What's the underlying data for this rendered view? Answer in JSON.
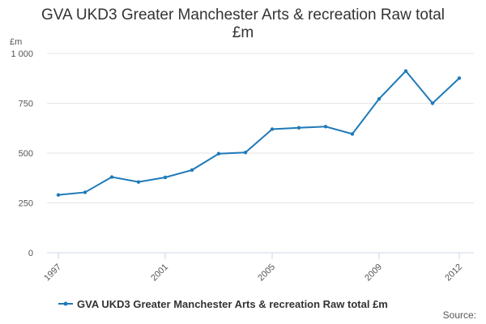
{
  "chart_data": {
    "type": "line",
    "title_lines": [
      "GVA UKD3 Greater Manchester Arts & recreation Raw total",
      "£m"
    ],
    "ylabel": "£m",
    "ylim": [
      0,
      1000
    ],
    "yticks": [
      0,
      250,
      500,
      750,
      1000
    ],
    "ytick_labels": [
      "0",
      "250",
      "500",
      "750",
      "1 000"
    ],
    "xlim": [
      1997,
      2012
    ],
    "xticks": [
      1997,
      2001,
      2005,
      2009,
      2012
    ],
    "xtick_labels": [
      "1997",
      "2001",
      "2005",
      "2009",
      "2012"
    ],
    "grid": true,
    "legend_position": "bottom",
    "series": [
      {
        "name": "GVA UKD3 Greater Manchester Arts & recreation Raw total £m",
        "color": "#1f7ab8",
        "x": [
          1997,
          1998,
          1999,
          2000,
          2001,
          2002,
          2003,
          2004,
          2005,
          2006,
          2007,
          2008,
          2009,
          2010,
          2011,
          2012
        ],
        "values": [
          290,
          303,
          380,
          355,
          378,
          415,
          497,
          503,
          620,
          627,
          633,
          596,
          772,
          912,
          750,
          876
        ]
      }
    ],
    "source_label": "Source:"
  }
}
